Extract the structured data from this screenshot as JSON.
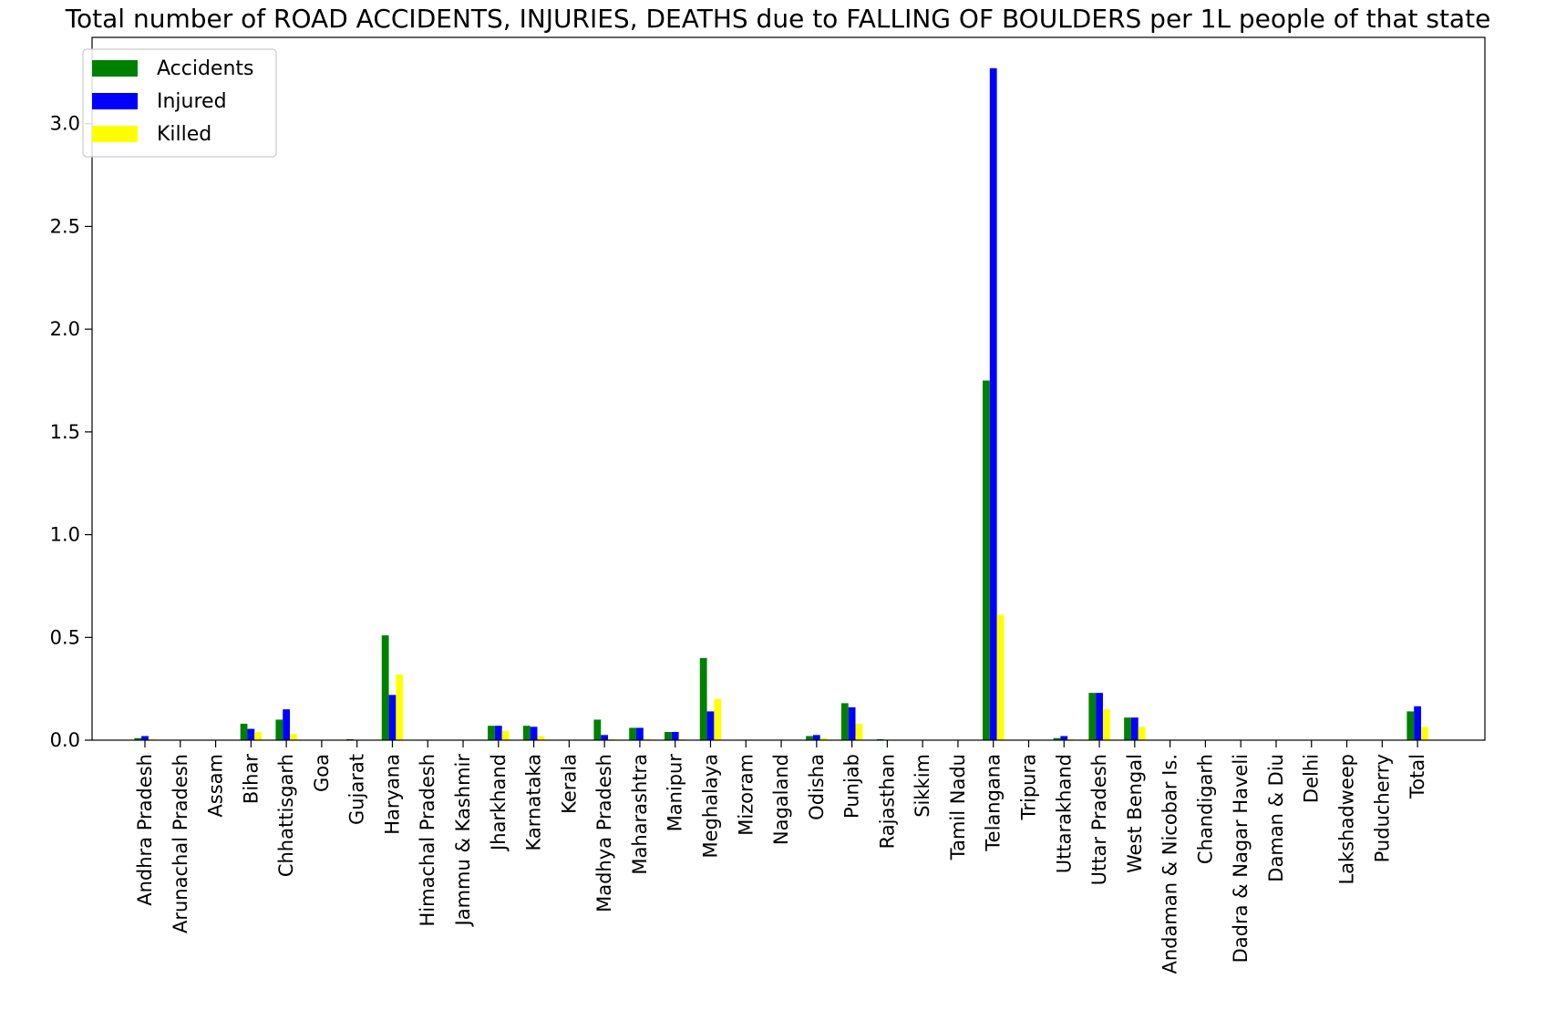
{
  "chart_data": {
    "type": "bar",
    "title": "Total number of ROAD ACCIDENTS, INJURIES, DEATHS due to FALLING OF BOULDERS per 1L people of that state",
    "xlabel": "",
    "ylabel": "",
    "ylim": [
      0,
      3.42
    ],
    "yticks": [
      0.0,
      0.5,
      1.0,
      1.5,
      2.0,
      2.5,
      3.0
    ],
    "ytick_labels": [
      "0.0",
      "0.5",
      "1.0",
      "1.5",
      "2.0",
      "2.5",
      "3.0"
    ],
    "grid": false,
    "legend_position": "top-left",
    "categories": [
      "Andhra Pradesh",
      "Arunachal Pradesh",
      "Assam",
      "Bihar",
      "Chhattisgarh",
      "Goa",
      "Gujarat",
      "Haryana",
      "Himachal Pradesh",
      "Jammu & Kashmir",
      "Jharkhand",
      "Karnataka",
      "Kerala",
      "Madhya Pradesh",
      "Maharashtra",
      "Manipur",
      "Meghalaya",
      "Mizoram",
      "Nagaland",
      "Odisha",
      "Punjab",
      "Rajasthan",
      "Sikkim",
      "Tamil Nadu",
      "Telangana",
      "Tripura",
      "Uttarakhand",
      "Uttar Pradesh",
      "West Bengal",
      "Andaman & Nicobar Is.",
      "Chandigarh",
      "Dadra & Nagar Haveli",
      "Daman & Diu",
      "Delhi",
      "Lakshadweep",
      "Puducherry",
      "Total"
    ],
    "series": [
      {
        "name": "Accidents",
        "color": "#008000",
        "values": [
          0.01,
          0,
          0,
          0.08,
          0.1,
          0,
          0.005,
          0.51,
          0,
          0,
          0.07,
          0.07,
          0,
          0.1,
          0.06,
          0.04,
          0.4,
          0,
          0,
          0.02,
          0.18,
          0.005,
          0,
          0,
          1.75,
          0,
          0.01,
          0.23,
          0.11,
          0,
          0,
          0,
          0,
          0,
          0,
          0,
          0.14
        ]
      },
      {
        "name": "Injured",
        "color": "#0000ff",
        "values": [
          0.02,
          0,
          0,
          0.055,
          0.15,
          0,
          0,
          0.22,
          0,
          0,
          0.07,
          0.065,
          0,
          0.025,
          0.06,
          0.04,
          0.14,
          0,
          0,
          0.025,
          0.16,
          0,
          0,
          0,
          3.27,
          0,
          0.02,
          0.23,
          0.11,
          0,
          0,
          0,
          0,
          0,
          0,
          0,
          0.165
        ]
      },
      {
        "name": "Killed",
        "color": "#ffff00",
        "values": [
          0.005,
          0,
          0,
          0.04,
          0.03,
          0,
          0,
          0.32,
          0,
          0,
          0.045,
          0.02,
          0,
          0.005,
          0.005,
          0.005,
          0.2,
          0,
          0,
          0.01,
          0.08,
          0,
          0,
          0,
          0.61,
          0,
          0.005,
          0.15,
          0.065,
          0,
          0,
          0,
          0,
          0,
          0,
          0,
          0.065
        ]
      }
    ]
  }
}
